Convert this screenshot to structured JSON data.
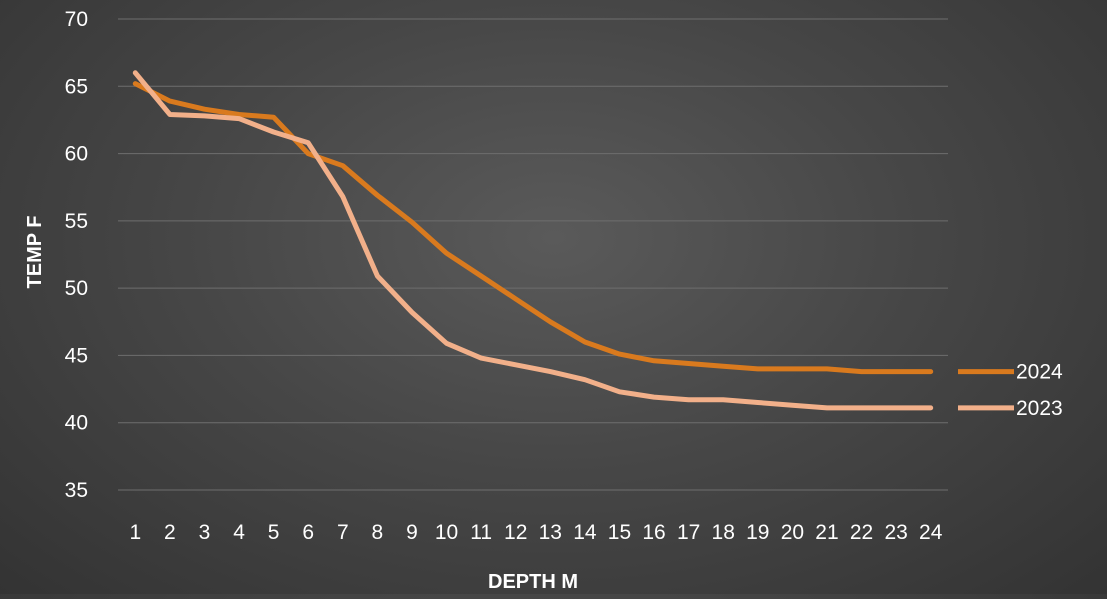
{
  "chart_data": {
    "type": "line",
    "xlabel": "DEPTH M",
    "ylabel": "TEMP F",
    "x": [
      1,
      2,
      3,
      4,
      5,
      6,
      7,
      8,
      9,
      10,
      11,
      12,
      13,
      14,
      15,
      16,
      17,
      18,
      19,
      20,
      21,
      22,
      23,
      24
    ],
    "ylim": [
      35,
      70
    ],
    "yticks": [
      35,
      40,
      45,
      50,
      55,
      60,
      65,
      70
    ],
    "grid": true,
    "legend_position": "right",
    "series": [
      {
        "name": "2024",
        "color": "#d97a1e",
        "values": [
          65.2,
          63.9,
          63.3,
          62.9,
          62.7,
          60.0,
          59.1,
          56.9,
          54.9,
          52.6,
          50.9,
          49.2,
          47.5,
          46.0,
          45.1,
          44.6,
          44.4,
          44.2,
          44.0,
          44.0,
          44.0,
          43.8,
          43.8,
          43.8
        ]
      },
      {
        "name": "2023",
        "color": "#f2b08a",
        "values": [
          66.0,
          62.9,
          62.8,
          62.6,
          61.6,
          60.8,
          56.8,
          50.9,
          48.2,
          45.9,
          44.8,
          44.3,
          43.8,
          43.2,
          42.3,
          41.9,
          41.7,
          41.7,
          41.5,
          41.3,
          41.1,
          41.1,
          41.1,
          41.1
        ]
      }
    ]
  }
}
